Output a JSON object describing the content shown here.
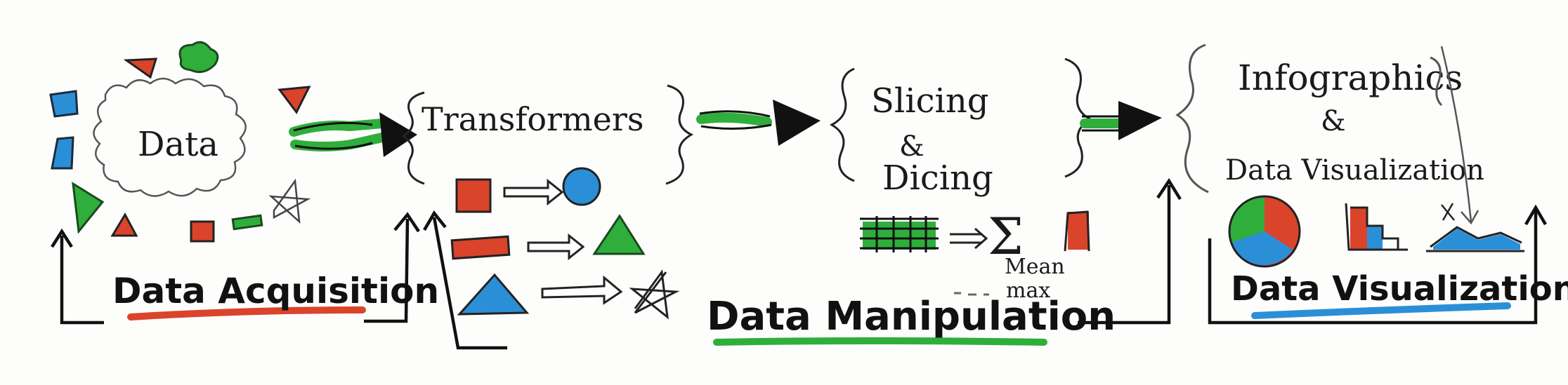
{
  "acquisition": {
    "cloud_label": "Data",
    "title": "Data Acquisition"
  },
  "manipulation": {
    "transformers_label": "Transformers",
    "slicing_label": "Slicing",
    "ampersand": "&",
    "dicing_label": "Dicing",
    "sigma": "Σ",
    "mean_label": "Mean",
    "max_label": "max",
    "title": "Data Manipulation"
  },
  "visualization": {
    "infographics_label": "Infographics",
    "ampersand": "&",
    "subtitle_label": "Data Visualization",
    "title": "Data Visualization"
  },
  "colors": {
    "red": "#d9442b",
    "green": "#2fae3c",
    "blue": "#2b8fd8",
    "ink": "#111111"
  }
}
